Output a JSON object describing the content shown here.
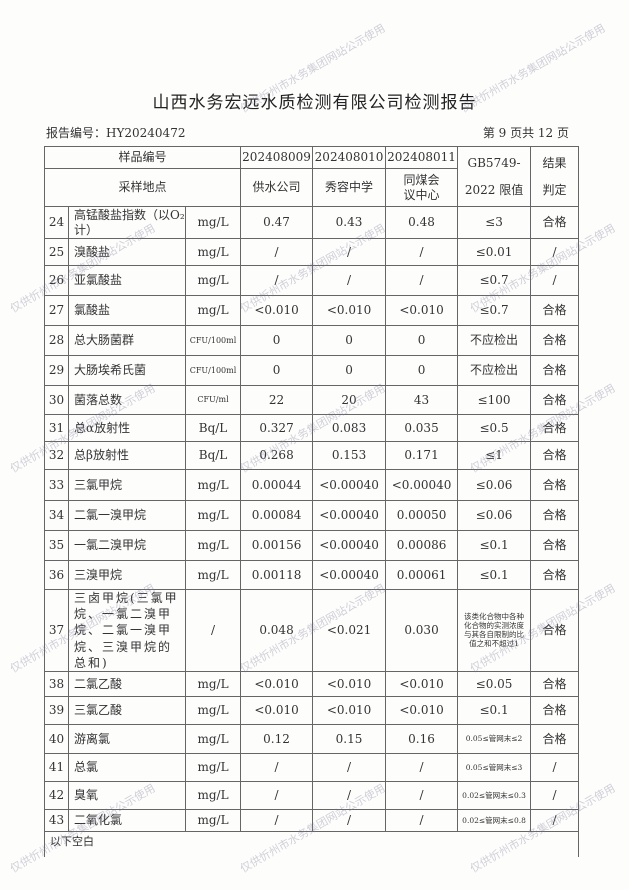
{
  "title": "山西水务宏远水质检测有限公司检测报告",
  "report_no": "报告编号：HY20240472",
  "page_info": "第 9 页共 12 页",
  "watermark": "仅供忻州市水务集团网站公示使用",
  "header": {
    "sample_no_label": "样品编号",
    "site_label": "采样地点",
    "samples": [
      "202408009",
      "202408010",
      "202408011"
    ],
    "sites": [
      "供水公司",
      "秀容中学",
      "同煤会议中心"
    ],
    "limit_label_1": "GB5749-",
    "limit_label_2": "2022 限值",
    "result_label_1": "结果",
    "result_label_2": "判定"
  },
  "rows": [
    {
      "no": "24",
      "name": "高锰酸盐指数（以O₂计）",
      "unit": "mg/L",
      "v1": "0.47",
      "v2": "0.43",
      "v3": "0.48",
      "limit": "≤3",
      "result": "合格"
    },
    {
      "no": "25",
      "name": "溴酸盐",
      "unit": "mg/L",
      "v1": "/",
      "v2": "/",
      "v3": "/",
      "limit": "≤0.01",
      "result": "/"
    },
    {
      "no": "26",
      "name": "亚氯酸盐",
      "unit": "mg/L",
      "v1": "/",
      "v2": "/",
      "v3": "/",
      "limit": "≤0.7",
      "result": "/"
    },
    {
      "no": "27",
      "name": "氯酸盐",
      "unit": "mg/L",
      "v1": "<0.010",
      "v2": "<0.010",
      "v3": "<0.010",
      "limit": "≤0.7",
      "result": "合格"
    },
    {
      "no": "28",
      "name": "总大肠菌群",
      "unit": "CFU/100ml",
      "v1": "0",
      "v2": "0",
      "v3": "0",
      "limit": "不应检出",
      "result": "合格"
    },
    {
      "no": "29",
      "name": "大肠埃希氏菌",
      "unit": "CFU/100ml",
      "v1": "0",
      "v2": "0",
      "v3": "0",
      "limit": "不应检出",
      "result": "合格"
    },
    {
      "no": "30",
      "name": "菌落总数",
      "unit": "CFU/ml",
      "v1": "22",
      "v2": "20",
      "v3": "43",
      "limit": "≤100",
      "result": "合格"
    },
    {
      "no": "31",
      "name": "总α放射性",
      "unit": "Bq/L",
      "v1": "0.327",
      "v2": "0.083",
      "v3": "0.035",
      "limit": "≤0.5",
      "result": "合格"
    },
    {
      "no": "32",
      "name": "总β放射性",
      "unit": "Bq/L",
      "v1": "0.268",
      "v2": "0.153",
      "v3": "0.171",
      "limit": "≤1",
      "result": "合格"
    },
    {
      "no": "33",
      "name": "三氯甲烷",
      "unit": "mg/L",
      "v1": "0.00044",
      "v2": "<0.00040",
      "v3": "<0.00040",
      "limit": "≤0.06",
      "result": "合格"
    },
    {
      "no": "34",
      "name": "二氯一溴甲烷",
      "unit": "mg/L",
      "v1": "0.00084",
      "v2": "<0.00040",
      "v3": "0.00050",
      "limit": "≤0.06",
      "result": "合格"
    },
    {
      "no": "35",
      "name": "一氯二溴甲烷",
      "unit": "mg/L",
      "v1": "0.00156",
      "v2": "<0.00040",
      "v3": "0.00086",
      "limit": "≤0.1",
      "result": "合格"
    },
    {
      "no": "36",
      "name": "三溴甲烷",
      "unit": "mg/L",
      "v1": "0.00118",
      "v2": "<0.00040",
      "v3": "0.00061",
      "limit": "≤0.1",
      "result": "合格"
    },
    {
      "no": "37",
      "name": "三卤甲烷(三氯甲烷、一氯二溴甲烷、二氯一溴甲烷、三溴甲烷的总和)",
      "unit": "/",
      "v1": "0.048",
      "v2": "<0.021",
      "v3": "0.030",
      "limit": "该类化合物中各种化合物的实测浓度与其各自限制的比值之和不超过1",
      "result": "合格"
    },
    {
      "no": "38",
      "name": "二氯乙酸",
      "unit": "mg/L",
      "v1": "<0.010",
      "v2": "<0.010",
      "v3": "<0.010",
      "limit": "≤0.05",
      "result": "合格"
    },
    {
      "no": "39",
      "name": "三氯乙酸",
      "unit": "mg/L",
      "v1": "<0.010",
      "v2": "<0.010",
      "v3": "<0.010",
      "limit": "≤0.1",
      "result": "合格"
    },
    {
      "no": "40",
      "name": "游离氯",
      "unit": "mg/L",
      "v1": "0.12",
      "v2": "0.15",
      "v3": "0.16",
      "limit": "0.05≤管网末≤2",
      "result": "合格"
    },
    {
      "no": "41",
      "name": "总氯",
      "unit": "mg/L",
      "v1": "/",
      "v2": "/",
      "v3": "/",
      "limit": "0.05≤管网末≤3",
      "result": "/"
    },
    {
      "no": "42",
      "name": "臭氧",
      "unit": "mg/L",
      "v1": "/",
      "v2": "/",
      "v3": "/",
      "limit": "0.02≤管网末≤0.3",
      "result": "/"
    },
    {
      "no": "43",
      "name": "二氧化氯",
      "unit": "mg/L",
      "v1": "/",
      "v2": "/",
      "v3": "/",
      "limit": "0.02≤管网末≤0.8",
      "result": "/"
    }
  ],
  "footer_note": "以下空白"
}
